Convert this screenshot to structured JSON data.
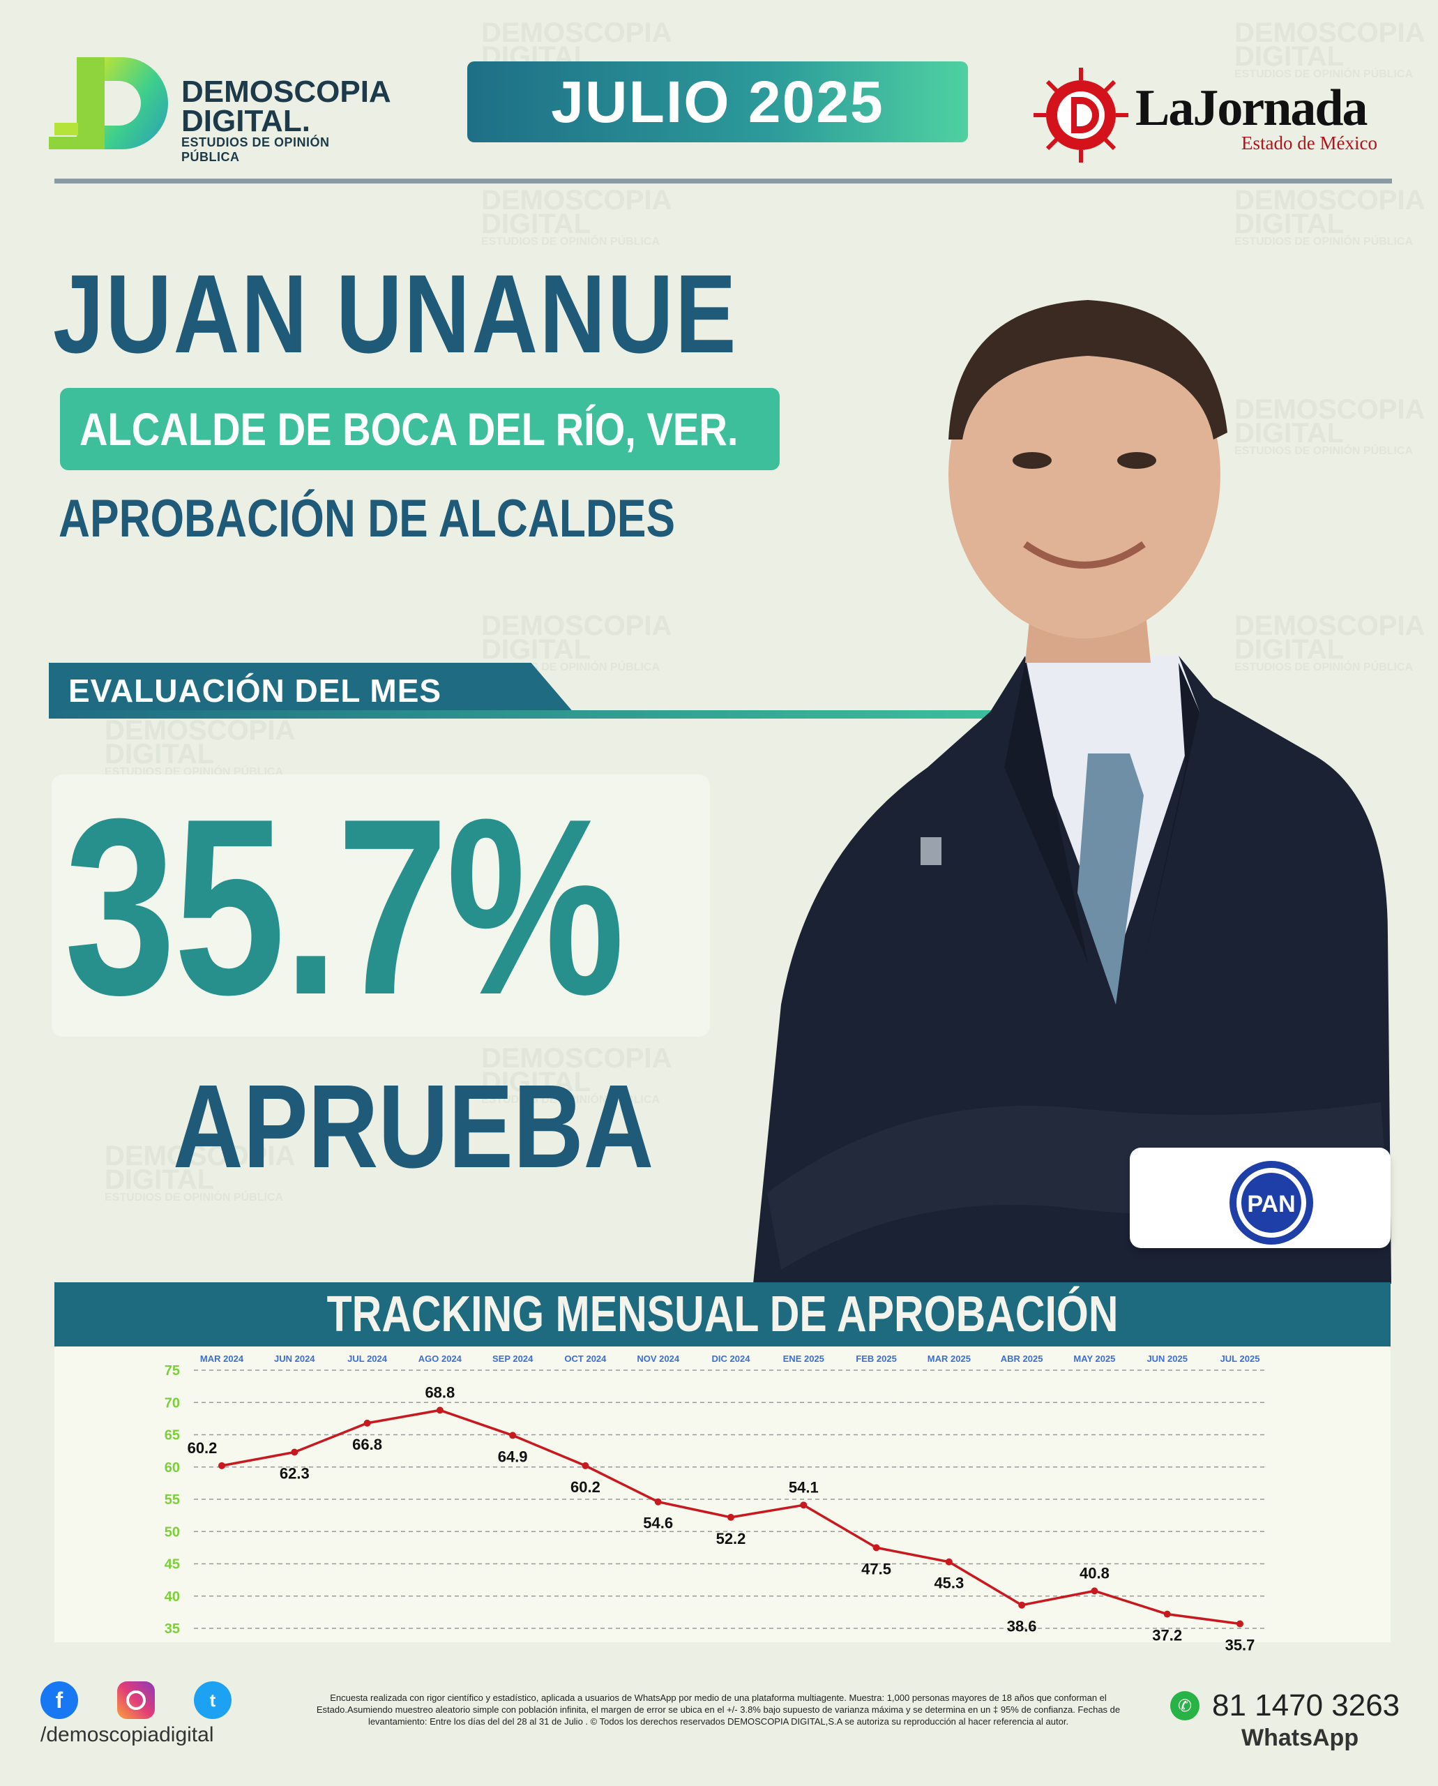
{
  "header": {
    "brand_line1": "DEMOSCOPIA",
    "brand_line2": "DIGITAL.",
    "brand_tagline": "ESTUDIOS DE OPINIÓN PÚBLICA",
    "month": "JULIO 2025",
    "partner_brand": "LaJornada",
    "partner_sub": "Estado de México"
  },
  "subject": {
    "name": "JUAN UNANUE",
    "role": "ALCALDE DE BOCA DEL RÍO, VER.",
    "section": "APROBACIÓN DE ALCALDES"
  },
  "evaluation": {
    "label": "EVALUACIÓN DEL MES",
    "value": "35.7%",
    "caption": "APRUEBA"
  },
  "party": {
    "name": "PAN"
  },
  "watermark": {
    "line1": "DEMOSCOPIA",
    "line2": "DIGITAL",
    "line3": "ESTUDIOS DE OPINIÓN PÚBLICA"
  },
  "chart_data": {
    "type": "line",
    "title": "TRACKING MENSUAL DE APROBACIÓN",
    "categories": [
      "MAR 2024",
      "JUN 2024",
      "JUL 2024",
      "AGO 2024",
      "SEP 2024",
      "OCT 2024",
      "NOV 2024",
      "DIC 2024",
      "ENE 2025",
      "FEB 2025",
      "MAR 2025",
      "ABR 2025",
      "MAY 2025",
      "JUN 2025",
      "JUL 2025"
    ],
    "series": [
      {
        "values": [
          60.2,
          62.3,
          66.8,
          68.8,
          64.9,
          60.2,
          54.6,
          52.2,
          54.1,
          47.5,
          45.3,
          38.6,
          40.8,
          37.2,
          35.7
        ]
      }
    ],
    "ylim": [
      35,
      75
    ],
    "yticks": [
      35,
      40,
      45,
      50,
      55,
      60,
      65,
      70,
      75
    ],
    "grid": true,
    "line_color": "#c8191f",
    "tick_color_x": "#3a6fd8",
    "tick_color_y": "#7ccf3a"
  },
  "footer": {
    "handle": "/demoscopiadigital",
    "disclaimer": "Encuesta realizada con rigor científico y estadístico, aplicada a usuarios de WhatsApp por medio de una plataforma multiagente. Muestra: 1,000 personas mayores de 18 años que conforman el Estado.Asumiendo muestreo aleatorio simple con población infinita, el margen de error se ubica en el +/- 3.8% bajo supuesto de varianza máxima y se determina en un ‡ 95% de confianza. Fechas de levantamiento: Entre los días del del 28 al 31 de Julio . © Todos los derechos reservados DEMOSCOPIA DIGITAL,S.A se autoriza su reproducción al hacer referencia al autor.",
    "phone": "81 1470 3263",
    "whatsapp_label": "WhatsApp"
  },
  "icons": [
    "facebook-icon",
    "instagram-icon",
    "twitter-icon",
    "whatsapp-icon"
  ]
}
